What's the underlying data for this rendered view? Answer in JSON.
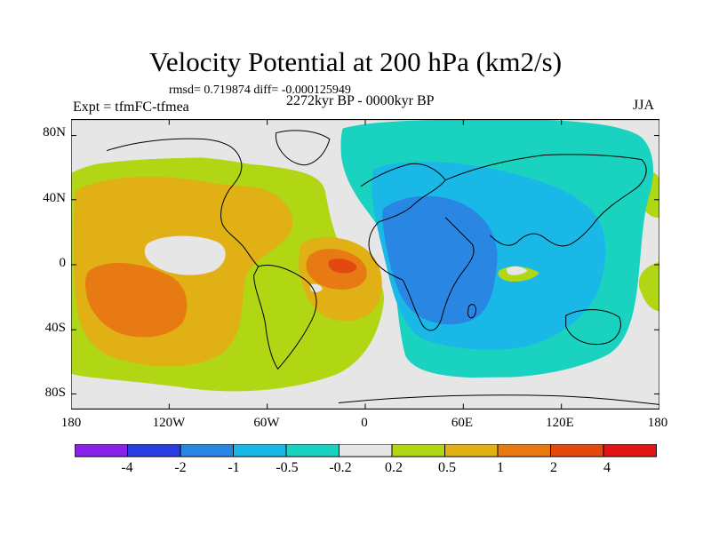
{
  "title": "Velocity Potential at 200 hPa (km2/s)",
  "stats": "rmsd= 0.719874 diff= -0.000125949",
  "experiment": "Expt = tfmFC-tfmea",
  "period": "2272kyr BP - 0000kyr BP",
  "season": "JJA",
  "map": {
    "projection": "cylindrical equidistant",
    "lon_range": [
      -180,
      180
    ],
    "lat_range": [
      -90,
      90
    ],
    "lat_ticks": [
      "80N",
      "40N",
      "0",
      "40S",
      "80S"
    ],
    "lon_ticks": [
      "180",
      "120W",
      "60W",
      "0",
      "60E",
      "120E",
      "180"
    ]
  },
  "colorbar": {
    "labels": [
      "-4",
      "-2",
      "-1",
      "-0.5",
      "-0.2",
      "0.2",
      "0.5",
      "1",
      "2",
      "4"
    ],
    "colors": [
      "#8a22e6",
      "#2a3be0",
      "#2a86e3",
      "#1ab8e6",
      "#19d2bf",
      "#e6e6e6",
      "#b0d614",
      "#e0b014",
      "#e87a14",
      "#e3480e",
      "#e01414"
    ]
  },
  "palette": {
    "strong_negative": "#2a86e3",
    "moderate_negative": "#1ab8e6",
    "weak_negative": "#19d2bf",
    "neutral": "#e6e6e6",
    "weak_positive": "#b0d614",
    "moderate_positive": "#e0b014",
    "strong_positive": "#e87a14",
    "very_strong_positive": "#e3480e"
  }
}
